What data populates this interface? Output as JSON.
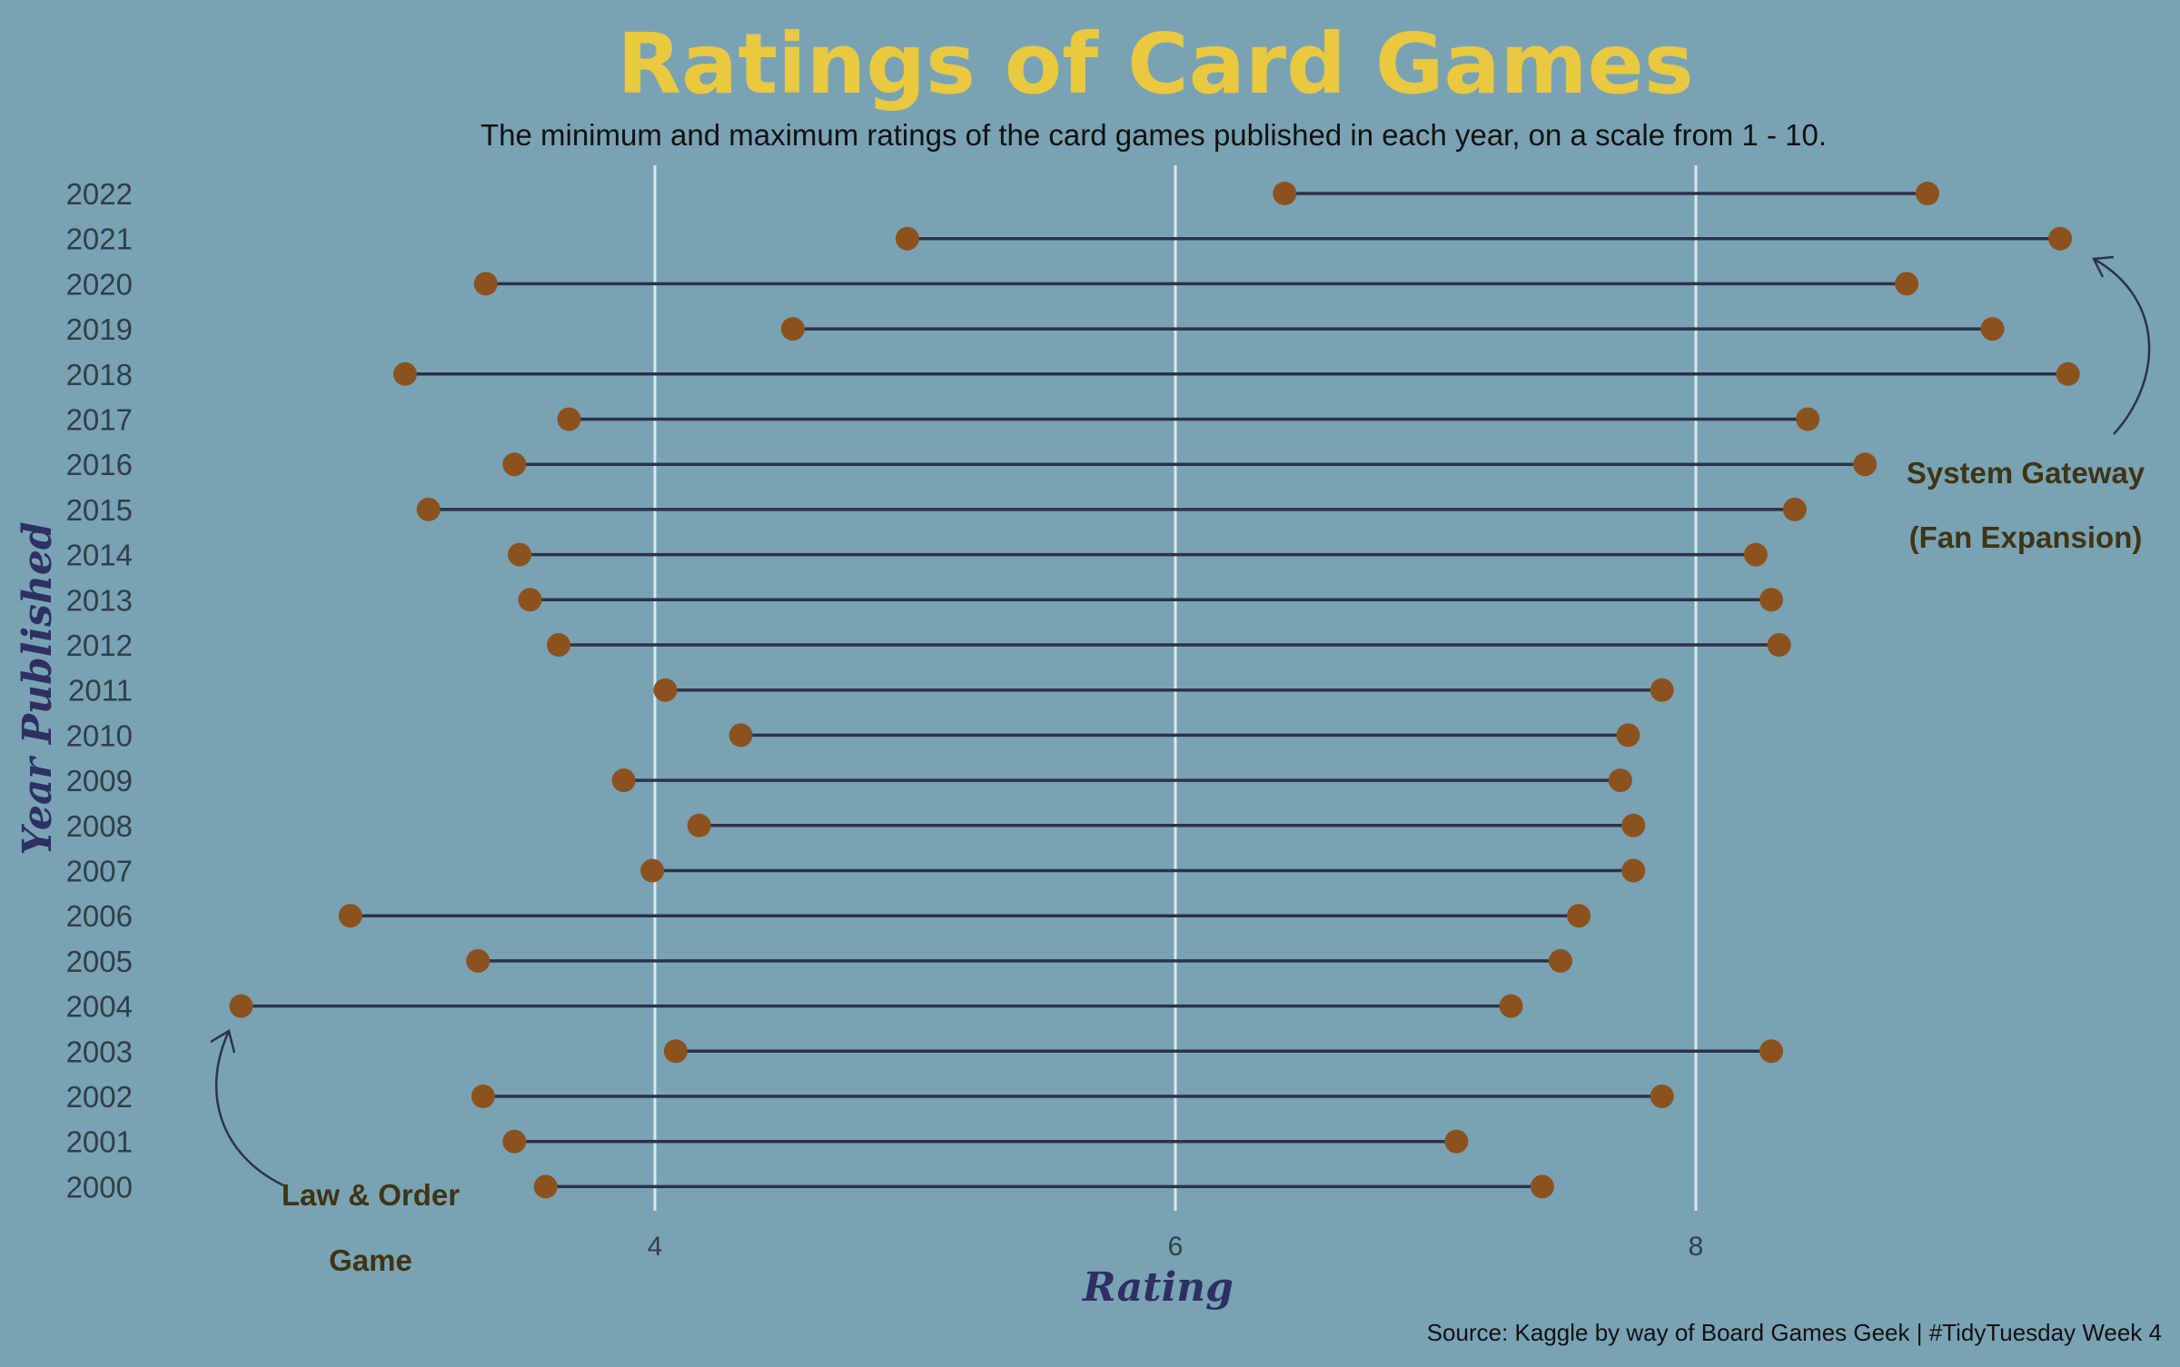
{
  "chart_data": {
    "type": "dumbbell",
    "title": "Ratings of Card Games",
    "subtitle": "The minimum and maximum ratings of the card games published in each year, on a scale from 1 - 10.",
    "xlabel": "Rating",
    "ylabel": "Year Published",
    "caption": "Source: Kaggle by way of Board Games Geek | #TidyTuesday Week 4",
    "xlim": [
      2.3,
      9.6
    ],
    "xticks": [
      4,
      6,
      8
    ],
    "grid": "vertical",
    "colors": {
      "background": "#79a3b4",
      "point": "#8b521e",
      "segment": "#2c3347",
      "grid": "#dde7ea",
      "title": "#e9c940"
    },
    "rows": [
      {
        "year": "2022",
        "min": 6.42,
        "max": 8.89
      },
      {
        "year": "2021",
        "min": 4.97,
        "max": 9.4
      },
      {
        "year": "2020",
        "min": 3.35,
        "max": 8.81
      },
      {
        "year": "2019",
        "min": 4.53,
        "max": 9.14
      },
      {
        "year": "2018",
        "min": 3.04,
        "max": 9.43
      },
      {
        "year": "2017",
        "min": 3.67,
        "max": 8.43
      },
      {
        "year": "2016",
        "min": 3.46,
        "max": 8.65
      },
      {
        "year": "2015",
        "min": 3.13,
        "max": 8.38
      },
      {
        "year": "2014",
        "min": 3.48,
        "max": 8.23
      },
      {
        "year": "2013",
        "min": 3.52,
        "max": 8.29
      },
      {
        "year": "2012",
        "min": 3.63,
        "max": 8.32
      },
      {
        "year": "2011",
        "min": 4.04,
        "max": 7.87
      },
      {
        "year": "2010",
        "min": 4.33,
        "max": 7.74
      },
      {
        "year": "2009",
        "min": 3.88,
        "max": 7.71
      },
      {
        "year": "2008",
        "min": 4.17,
        "max": 7.76
      },
      {
        "year": "2007",
        "min": 3.99,
        "max": 7.76
      },
      {
        "year": "2006",
        "min": 2.83,
        "max": 7.55
      },
      {
        "year": "2005",
        "min": 3.32,
        "max": 7.48
      },
      {
        "year": "2004",
        "min": 2.41,
        "max": 7.29
      },
      {
        "year": "2003",
        "min": 4.08,
        "max": 8.29
      },
      {
        "year": "2002",
        "min": 3.34,
        "max": 7.87
      },
      {
        "year": "2001",
        "min": 3.46,
        "max": 7.08
      },
      {
        "year": "2000",
        "min": 3.58,
        "max": 7.41
      }
    ],
    "annotations": [
      {
        "lines": [
          "System Gateway",
          "(Fan Expansion)"
        ],
        "points_to": "2018 max"
      },
      {
        "lines": [
          "Law & Order",
          "Game"
        ],
        "points_to": "2004 min"
      }
    ]
  }
}
